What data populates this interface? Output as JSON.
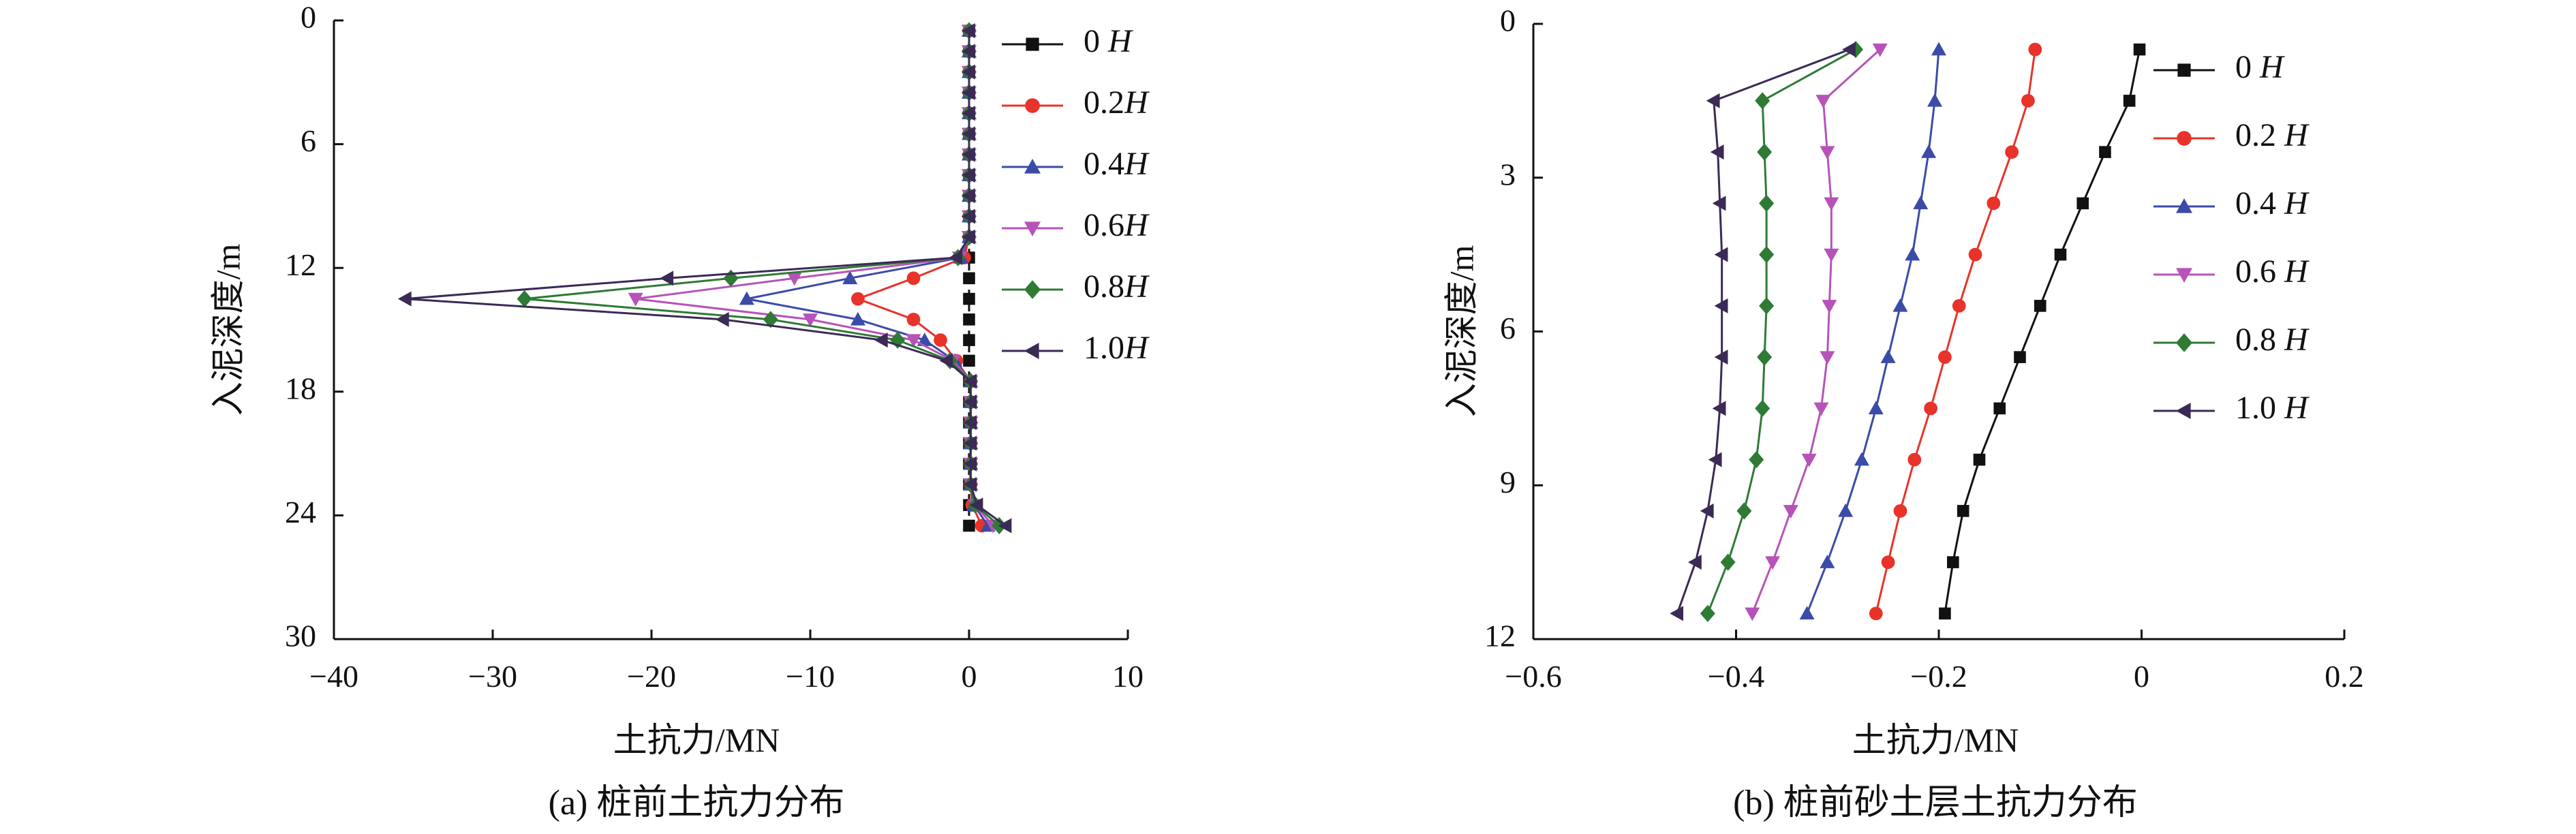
{
  "chart_data": [
    {
      "type": "line",
      "caption": "(a) 桩前土抗力分布",
      "xlabel": "土抗力/MN",
      "ylabel": "入泥深度/m",
      "xlim": [
        -40,
        10
      ],
      "ylim": [
        0,
        30
      ],
      "y_inverted": true,
      "xticks": [
        -40,
        -30,
        -20,
        -10,
        0,
        10
      ],
      "yticks": [
        0,
        6,
        12,
        18,
        24,
        30
      ],
      "legend_position": "right",
      "series": [
        {
          "name": "0 H",
          "color": "#111111",
          "marker": "square",
          "dashed": true,
          "points": [
            [
              0,
              0.5
            ],
            [
              0,
              1.5
            ],
            [
              0,
              2.5
            ],
            [
              0,
              3.5
            ],
            [
              0,
              4.5
            ],
            [
              0,
              5.5
            ],
            [
              0,
              6.5
            ],
            [
              0,
              7.5
            ],
            [
              0,
              8.5
            ],
            [
              0,
              9.5
            ],
            [
              0,
              10.5
            ],
            [
              0,
              11.5
            ],
            [
              0,
              12.5
            ],
            [
              0,
              13.5
            ],
            [
              0,
              14.5
            ],
            [
              0,
              15.5
            ],
            [
              0,
              16.5
            ],
            [
              0,
              17.5
            ],
            [
              0,
              18.5
            ],
            [
              0,
              19.5
            ],
            [
              0,
              20.5
            ],
            [
              0,
              21.5
            ],
            [
              0,
              22.5
            ],
            [
              0,
              23.5
            ],
            [
              0,
              24.5
            ]
          ]
        },
        {
          "name": "0.2H",
          "color": "#e8332a",
          "marker": "circle",
          "points": [
            [
              0,
              0.5
            ],
            [
              0,
              1.5
            ],
            [
              0,
              2.5
            ],
            [
              0,
              3.5
            ],
            [
              0,
              4.5
            ],
            [
              0,
              5.5
            ],
            [
              0,
              6.5
            ],
            [
              0,
              7.5
            ],
            [
              0,
              8.5
            ],
            [
              0,
              9.5
            ],
            [
              0,
              10.5
            ],
            [
              -0.3,
              11.5
            ],
            [
              -3.5,
              12.5
            ],
            [
              -7,
              13.5
            ],
            [
              -3.5,
              14.5
            ],
            [
              -1.8,
              15.5
            ],
            [
              -0.8,
              16.5
            ],
            [
              0.1,
              17.5
            ],
            [
              0.1,
              18.5
            ],
            [
              0.1,
              19.5
            ],
            [
              0.1,
              20.5
            ],
            [
              0.1,
              21.5
            ],
            [
              0.1,
              22.5
            ],
            [
              0.2,
              23.5
            ],
            [
              0.8,
              24.5
            ]
          ]
        },
        {
          "name": "0.4H",
          "color": "#3b4ba8",
          "marker": "triangle-up",
          "points": [
            [
              0,
              0.5
            ],
            [
              0,
              1.5
            ],
            [
              0,
              2.5
            ],
            [
              0,
              3.5
            ],
            [
              0,
              4.5
            ],
            [
              0,
              5.5
            ],
            [
              0,
              6.5
            ],
            [
              0,
              7.5
            ],
            [
              0,
              8.5
            ],
            [
              0,
              9.5
            ],
            [
              0,
              10.5
            ],
            [
              -0.5,
              11.5
            ],
            [
              -7.5,
              12.5
            ],
            [
              -14,
              13.5
            ],
            [
              -7,
              14.5
            ],
            [
              -2.8,
              15.5
            ],
            [
              -0.9,
              16.5
            ],
            [
              0.1,
              17.5
            ],
            [
              0.1,
              18.5
            ],
            [
              0.1,
              19.5
            ],
            [
              0.1,
              20.5
            ],
            [
              0.1,
              21.5
            ],
            [
              0.1,
              22.5
            ],
            [
              0.3,
              23.5
            ],
            [
              1.2,
              24.5
            ]
          ]
        },
        {
          "name": "0.6H",
          "color": "#b753b8",
          "marker": "triangle-down",
          "points": [
            [
              0,
              0.5
            ],
            [
              0,
              1.5
            ],
            [
              0,
              2.5
            ],
            [
              0,
              3.5
            ],
            [
              0,
              4.5
            ],
            [
              0,
              5.5
            ],
            [
              0,
              6.5
            ],
            [
              0,
              7.5
            ],
            [
              0,
              8.5
            ],
            [
              0,
              9.5
            ],
            [
              0,
              10.5
            ],
            [
              -0.6,
              11.5
            ],
            [
              -11,
              12.5
            ],
            [
              -21,
              13.5
            ],
            [
              -10,
              14.5
            ],
            [
              -3.5,
              15.5
            ],
            [
              -1,
              16.5
            ],
            [
              0.1,
              17.5
            ],
            [
              0.1,
              18.5
            ],
            [
              0.1,
              19.5
            ],
            [
              0.1,
              20.5
            ],
            [
              0.1,
              21.5
            ],
            [
              0.1,
              22.5
            ],
            [
              0.4,
              23.5
            ],
            [
              1.5,
              24.5
            ]
          ]
        },
        {
          "name": "0.8H",
          "color": "#2f7a34",
          "marker": "diamond",
          "points": [
            [
              0,
              0.5
            ],
            [
              0,
              1.5
            ],
            [
              0,
              2.5
            ],
            [
              0,
              3.5
            ],
            [
              0,
              4.5
            ],
            [
              0,
              5.5
            ],
            [
              0,
              6.5
            ],
            [
              0,
              7.5
            ],
            [
              0,
              8.5
            ],
            [
              0,
              9.5
            ],
            [
              0,
              10.5
            ],
            [
              -0.7,
              11.5
            ],
            [
              -15,
              12.5
            ],
            [
              -28,
              13.5
            ],
            [
              -12.5,
              14.5
            ],
            [
              -4.5,
              15.5
            ],
            [
              -1.2,
              16.5
            ],
            [
              0.1,
              17.5
            ],
            [
              0.1,
              18.5
            ],
            [
              0.1,
              19.5
            ],
            [
              0.1,
              20.5
            ],
            [
              0.1,
              21.5
            ],
            [
              0.1,
              22.5
            ],
            [
              0.4,
              23.5
            ],
            [
              1.9,
              24.5
            ]
          ]
        },
        {
          "name": "1.0H",
          "color": "#3b2a55",
          "marker": "triangle-left",
          "points": [
            [
              0,
              0.5
            ],
            [
              0,
              1.5
            ],
            [
              0,
              2.5
            ],
            [
              0,
              3.5
            ],
            [
              0,
              4.5
            ],
            [
              0,
              5.5
            ],
            [
              0,
              6.5
            ],
            [
              0,
              7.5
            ],
            [
              0,
              8.5
            ],
            [
              0,
              9.5
            ],
            [
              0,
              10.5
            ],
            [
              -0.8,
              11.5
            ],
            [
              -19,
              12.5
            ],
            [
              -35.5,
              13.5
            ],
            [
              -15.5,
              14.5
            ],
            [
              -5.5,
              15.5
            ],
            [
              -1.4,
              16.5
            ],
            [
              0.1,
              17.5
            ],
            [
              0.1,
              18.5
            ],
            [
              0.1,
              19.5
            ],
            [
              0.1,
              20.5
            ],
            [
              0.1,
              21.5
            ],
            [
              0.1,
              22.5
            ],
            [
              0.5,
              23.5
            ],
            [
              2.3,
              24.5
            ]
          ]
        }
      ]
    },
    {
      "type": "line",
      "caption": "(b) 桩前砂土层土抗力分布",
      "xlabel": "土抗力/MN",
      "ylabel": "入泥深度/m",
      "xlim": [
        -0.6,
        0.2
      ],
      "ylim": [
        0,
        12
      ],
      "y_inverted": true,
      "xticks": [
        -0.6,
        -0.4,
        -0.2,
        0,
        0.2
      ],
      "yticks": [
        0,
        3,
        6,
        9,
        12
      ],
      "legend_position": "right",
      "series": [
        {
          "name": "0 H",
          "color": "#111111",
          "marker": "square",
          "points": [
            [
              -0.002,
              0.5
            ],
            [
              -0.012,
              1.5
            ],
            [
              -0.036,
              2.5
            ],
            [
              -0.058,
              3.5
            ],
            [
              -0.08,
              4.5
            ],
            [
              -0.1,
              5.5
            ],
            [
              -0.12,
              6.5
            ],
            [
              -0.14,
              7.5
            ],
            [
              -0.16,
              8.5
            ],
            [
              -0.176,
              9.5
            ],
            [
              -0.186,
              10.5
            ],
            [
              -0.194,
              11.5
            ]
          ]
        },
        {
          "name": "0.2 H",
          "color": "#e8332a",
          "marker": "circle",
          "points": [
            [
              -0.105,
              0.5
            ],
            [
              -0.112,
              1.5
            ],
            [
              -0.128,
              2.5
            ],
            [
              -0.146,
              3.5
            ],
            [
              -0.164,
              4.5
            ],
            [
              -0.18,
              5.5
            ],
            [
              -0.194,
              6.5
            ],
            [
              -0.208,
              7.5
            ],
            [
              -0.224,
              8.5
            ],
            [
              -0.238,
              9.5
            ],
            [
              -0.25,
              10.5
            ],
            [
              -0.262,
              11.5
            ]
          ]
        },
        {
          "name": "0.4 H",
          "color": "#3b4ba8",
          "marker": "triangle-up",
          "points": [
            [
              -0.2,
              0.5
            ],
            [
              -0.204,
              1.5
            ],
            [
              -0.21,
              2.5
            ],
            [
              -0.218,
              3.5
            ],
            [
              -0.226,
              4.5
            ],
            [
              -0.238,
              5.5
            ],
            [
              -0.25,
              6.5
            ],
            [
              -0.262,
              7.5
            ],
            [
              -0.276,
              8.5
            ],
            [
              -0.292,
              9.5
            ],
            [
              -0.31,
              10.5
            ],
            [
              -0.33,
              11.5
            ]
          ]
        },
        {
          "name": "0.6 H",
          "color": "#b753b8",
          "marker": "triangle-down",
          "points": [
            [
              -0.258,
              0.5
            ],
            [
              -0.314,
              1.5
            ],
            [
              -0.31,
              2.5
            ],
            [
              -0.306,
              3.5
            ],
            [
              -0.306,
              4.5
            ],
            [
              -0.308,
              5.5
            ],
            [
              -0.31,
              6.5
            ],
            [
              -0.316,
              7.5
            ],
            [
              -0.328,
              8.5
            ],
            [
              -0.346,
              9.5
            ],
            [
              -0.364,
              10.5
            ],
            [
              -0.384,
              11.5
            ]
          ]
        },
        {
          "name": "0.8 H",
          "color": "#2f7a34",
          "marker": "diamond",
          "points": [
            [
              -0.282,
              0.5
            ],
            [
              -0.374,
              1.5
            ],
            [
              -0.372,
              2.5
            ],
            [
              -0.37,
              3.5
            ],
            [
              -0.37,
              4.5
            ],
            [
              -0.37,
              5.5
            ],
            [
              -0.372,
              6.5
            ],
            [
              -0.374,
              7.5
            ],
            [
              -0.38,
              8.5
            ],
            [
              -0.392,
              9.5
            ],
            [
              -0.408,
              10.5
            ],
            [
              -0.428,
              11.5
            ]
          ]
        },
        {
          "name": "1.0 H",
          "color": "#3b2a55",
          "marker": "triangle-left",
          "points": [
            [
              -0.288,
              0.5
            ],
            [
              -0.422,
              1.5
            ],
            [
              -0.418,
              2.5
            ],
            [
              -0.416,
              3.5
            ],
            [
              -0.414,
              4.5
            ],
            [
              -0.414,
              5.5
            ],
            [
              -0.414,
              6.5
            ],
            [
              -0.416,
              7.5
            ],
            [
              -0.42,
              8.5
            ],
            [
              -0.428,
              9.5
            ],
            [
              -0.44,
              10.5
            ],
            [
              -0.458,
              11.5
            ]
          ]
        }
      ]
    }
  ]
}
